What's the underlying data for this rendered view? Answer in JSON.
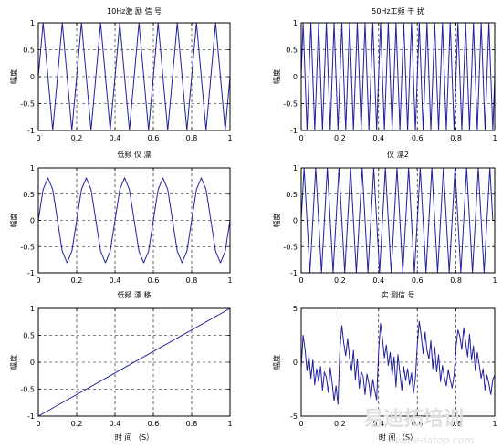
{
  "colors": {
    "line": "#1f1f9f",
    "axis": "#000000",
    "grid": "#000000",
    "background": "#ffffff"
  },
  "watermark": {
    "text": "易迪拓培训",
    "url": "www.edatop.com"
  },
  "chart_data": [
    {
      "type": "line",
      "title": "10Hz激 励 信 号",
      "xlabel": "",
      "ylabel": "幅度",
      "xlim": [
        0,
        1
      ],
      "ylim": [
        -1,
        1
      ],
      "xticks": [
        0,
        0.2,
        0.4,
        0.6,
        0.8,
        1
      ],
      "yticks": [
        -1,
        -0.5,
        0,
        0.5,
        1
      ],
      "grid": true,
      "series": [
        {
          "x": [
            0,
            0.025,
            0.05,
            0.075,
            0.1,
            0.125,
            0.15,
            0.175,
            0.2,
            0.225,
            0.25,
            0.275,
            0.3,
            0.325,
            0.35,
            0.375,
            0.4,
            0.425,
            0.45,
            0.475,
            0.5,
            0.525,
            0.55,
            0.575,
            0.6,
            0.625,
            0.65,
            0.675,
            0.7,
            0.725,
            0.75,
            0.775,
            0.8,
            0.825,
            0.85,
            0.875,
            0.9,
            0.925,
            0.95,
            0.975,
            1
          ],
          "y": [
            0,
            1,
            0,
            -1,
            0,
            1,
            0,
            -1,
            0,
            1,
            0,
            -1,
            0,
            1,
            0,
            -1,
            0,
            1,
            0,
            -1,
            0,
            1,
            0,
            -1,
            0,
            1,
            0,
            -1,
            0,
            1,
            0,
            -1,
            0,
            1,
            0,
            -1,
            0,
            1,
            0,
            -1,
            0
          ]
        }
      ]
    },
    {
      "type": "line",
      "title": "50Hz工频 干 扰",
      "xlabel": "",
      "ylabel": "幅度",
      "xlim": [
        0,
        1
      ],
      "ylim": [
        -1,
        1
      ],
      "xticks": [
        0,
        0.2,
        0.4,
        0.6,
        0.8,
        1
      ],
      "yticks": [
        -1,
        -0.5,
        0,
        0.5,
        1
      ],
      "grid": true,
      "series": [
        {
          "x": [
            0,
            0.01,
            0.02,
            0.03,
            0.04,
            0.05,
            0.06,
            0.07,
            0.08,
            0.09,
            0.1,
            0.11,
            0.12,
            0.13,
            0.14,
            0.15,
            0.16,
            0.17,
            0.18,
            0.19,
            0.2,
            0.21,
            0.22,
            0.23,
            0.24,
            0.25,
            0.26,
            0.27,
            0.28,
            0.29,
            0.3,
            0.31,
            0.32,
            0.33,
            0.34,
            0.35,
            0.36,
            0.37,
            0.38,
            0.39,
            0.4,
            0.41,
            0.42,
            0.43,
            0.44,
            0.45,
            0.46,
            0.47,
            0.48,
            0.49,
            0.5,
            0.51,
            0.52,
            0.53,
            0.54,
            0.55,
            0.56,
            0.57,
            0.58,
            0.59,
            0.6,
            0.61,
            0.62,
            0.63,
            0.64,
            0.65,
            0.66,
            0.67,
            0.68,
            0.69,
            0.7,
            0.71,
            0.72,
            0.73,
            0.74,
            0.75,
            0.76,
            0.77,
            0.78,
            0.79,
            0.8,
            0.81,
            0.82,
            0.83,
            0.84,
            0.85,
            0.86,
            0.87,
            0.88,
            0.89,
            0.9,
            0.91,
            0.92,
            0.93,
            0.94,
            0.95,
            0.96,
            0.97,
            0.98,
            0.99,
            1
          ],
          "y": [
            0,
            1,
            0,
            -1,
            0,
            1,
            0,
            -1,
            0,
            1,
            0,
            -1,
            0,
            1,
            0,
            -1,
            0,
            1,
            0,
            -1,
            0,
            1,
            0,
            -1,
            0,
            1,
            0,
            -1,
            0,
            1,
            0,
            -1,
            0,
            1,
            0,
            -1,
            0,
            1,
            0,
            -1,
            0,
            1,
            0,
            -1,
            0,
            1,
            0,
            -1,
            0,
            1,
            0,
            -1,
            0,
            1,
            0,
            -1,
            0,
            1,
            0,
            -1,
            0,
            1,
            0,
            -1,
            0,
            1,
            0,
            -1,
            0,
            1,
            0,
            -1,
            0,
            1,
            0,
            -1,
            0,
            1,
            0,
            -1,
            0,
            1,
            0,
            -1,
            0,
            1,
            0,
            -1,
            0,
            1,
            0,
            -1,
            0,
            1,
            0,
            -1,
            0,
            1,
            0,
            -1,
            0
          ]
        }
      ]
    },
    {
      "type": "line",
      "title": "低频 仪 漂",
      "xlabel": "",
      "ylabel": "幅度",
      "xlim": [
        0,
        1
      ],
      "ylim": [
        -1,
        1
      ],
      "xticks": [
        0,
        0.2,
        0.4,
        0.6,
        0.8,
        1
      ],
      "yticks": [
        -1,
        -0.5,
        0,
        0.5,
        1
      ],
      "grid": true,
      "series": [
        {
          "x": [
            0,
            0.025,
            0.05,
            0.075,
            0.1,
            0.125,
            0.15,
            0.175,
            0.2,
            0.225,
            0.25,
            0.275,
            0.3,
            0.325,
            0.35,
            0.375,
            0.4,
            0.425,
            0.45,
            0.475,
            0.5,
            0.525,
            0.55,
            0.575,
            0.6,
            0.625,
            0.65,
            0.675,
            0.7,
            0.725,
            0.75,
            0.775,
            0.8,
            0.825,
            0.85,
            0.875,
            0.9,
            0.925,
            0.95,
            0.975,
            1
          ],
          "y": [
            0,
            0.59,
            0.81,
            0.59,
            0,
            -0.59,
            -0.81,
            -0.59,
            0,
            0.59,
            0.81,
            0.59,
            0,
            -0.59,
            -0.81,
            -0.59,
            0,
            0.59,
            0.81,
            0.59,
            0,
            -0.59,
            -0.81,
            -0.59,
            0,
            0.59,
            0.81,
            0.59,
            0,
            -0.59,
            -0.81,
            -0.59,
            0,
            0.59,
            0.81,
            0.59,
            0,
            -0.59,
            -0.81,
            -0.59,
            0
          ]
        }
      ]
    },
    {
      "type": "line",
      "title": "仪 漂2",
      "xlabel": "",
      "ylabel": "幅度",
      "xlim": [
        0,
        1
      ],
      "ylim": [
        -1,
        1
      ],
      "xticks": [
        0,
        0.2,
        0.4,
        0.6,
        0.8,
        1
      ],
      "yticks": [
        -1,
        -0.5,
        0,
        0.5,
        1
      ],
      "grid": true,
      "series": [
        {
          "x": [
            0,
            0.015,
            0.03,
            0.045,
            0.06,
            0.075,
            0.09,
            0.105,
            0.12,
            0.135,
            0.15,
            0.165,
            0.18,
            0.195,
            0.21,
            0.225,
            0.24,
            0.255,
            0.27,
            0.285,
            0.3,
            0.315,
            0.33,
            0.345,
            0.36,
            0.375,
            0.39,
            0.405,
            0.42,
            0.435,
            0.45,
            0.465,
            0.48,
            0.495,
            0.51,
            0.525,
            0.54,
            0.555,
            0.57,
            0.585,
            0.6,
            0.615,
            0.63,
            0.645,
            0.66,
            0.675,
            0.69,
            0.705,
            0.72,
            0.735,
            0.75,
            0.765,
            0.78,
            0.795,
            0.81,
            0.825,
            0.84,
            0.855,
            0.87,
            0.885,
            0.9,
            0.915,
            0.93,
            0.945,
            0.96,
            0.975,
            0.99,
            1
          ],
          "y": [
            0,
            1,
            0,
            -1,
            0,
            1,
            0,
            -1,
            0,
            1,
            0,
            -1,
            0,
            1,
            0,
            -1,
            0,
            1,
            0,
            -1,
            0,
            1,
            0,
            -1,
            0,
            1,
            0,
            -1,
            0,
            1,
            0,
            -1,
            0,
            1,
            0,
            -1,
            0,
            1,
            0,
            -1,
            0,
            1,
            0,
            -1,
            0,
            1,
            0,
            -1,
            0,
            1,
            0,
            -1,
            0,
            1,
            0,
            -1,
            0,
            1,
            0,
            -1,
            0,
            1,
            0,
            -1,
            0,
            1,
            0,
            0
          ]
        }
      ]
    },
    {
      "type": "line",
      "title": "低频 漂 移",
      "xlabel": "时 间 （S）",
      "ylabel": "幅度",
      "xlim": [
        0,
        1
      ],
      "ylim": [
        -1,
        1
      ],
      "xticks": [
        0,
        0.2,
        0.4,
        0.6,
        0.8,
        1
      ],
      "yticks": [
        -1,
        -0.5,
        0,
        0.5,
        1
      ],
      "grid": true,
      "series": [
        {
          "x": [
            0,
            1
          ],
          "y": [
            -1,
            1
          ]
        }
      ]
    },
    {
      "type": "line",
      "title": "实 测信 号",
      "xlabel": "时 间 （S）",
      "ylabel": "幅度",
      "xlim": [
        0,
        1
      ],
      "ylim": [
        -5,
        5
      ],
      "xticks": [
        0,
        0.2,
        0.4,
        0.6,
        0.8,
        1
      ],
      "yticks": [
        -5,
        0,
        5
      ],
      "grid": true,
      "series": [
        {
          "x": [
            0,
            0.01,
            0.02,
            0.03,
            0.04,
            0.05,
            0.06,
            0.07,
            0.08,
            0.09,
            0.1,
            0.11,
            0.12,
            0.13,
            0.14,
            0.15,
            0.16,
            0.17,
            0.18,
            0.19,
            0.2,
            0.21,
            0.22,
            0.23,
            0.24,
            0.25,
            0.26,
            0.27,
            0.28,
            0.29,
            0.3,
            0.31,
            0.32,
            0.33,
            0.34,
            0.35,
            0.36,
            0.37,
            0.38,
            0.39,
            0.4,
            0.41,
            0.42,
            0.43,
            0.44,
            0.45,
            0.46,
            0.47,
            0.48,
            0.49,
            0.5,
            0.51,
            0.52,
            0.53,
            0.54,
            0.55,
            0.56,
            0.57,
            0.58,
            0.59,
            0.6,
            0.61,
            0.62,
            0.63,
            0.64,
            0.65,
            0.66,
            0.67,
            0.68,
            0.69,
            0.7,
            0.71,
            0.72,
            0.73,
            0.74,
            0.75,
            0.76,
            0.77,
            0.78,
            0.79,
            0.8,
            0.81,
            0.82,
            0.83,
            0.84,
            0.85,
            0.86,
            0.87,
            0.88,
            0.89,
            0.9,
            0.91,
            0.92,
            0.93,
            0.94,
            0.95,
            0.96,
            0.97,
            0.98,
            0.99,
            1
          ],
          "y": [
            -0.5,
            2.5,
            1.2,
            -0.8,
            0.6,
            -1.5,
            0.2,
            -2.1,
            -0.6,
            -1.8,
            -0.4,
            -2.6,
            -0.9,
            -1.4,
            -2.8,
            -0.5,
            -1.9,
            -3.6,
            -2.2,
            -3.9,
            1.2,
            3.4,
            1.8,
            0.6,
            2.2,
            0.4,
            -0.8,
            1.1,
            -1.6,
            0.3,
            -2.4,
            -0.9,
            -1.3,
            -3.0,
            -1.1,
            -2.0,
            -3.4,
            -1.6,
            -2.6,
            -3.5,
            1.0,
            3.6,
            2.2,
            0.4,
            1.6,
            -0.3,
            0.9,
            -1.2,
            0.5,
            -2.3,
            0.7,
            -1.0,
            -2.6,
            -0.4,
            -1.7,
            -0.6,
            -2.1,
            -1.0,
            -2.9,
            -1.5,
            1.6,
            3.8,
            2.5,
            0.8,
            2.8,
            1.1,
            0.3,
            2.0,
            -0.6,
            1.4,
            -0.9,
            0.7,
            -1.8,
            -0.3,
            -1.4,
            -2.2,
            -0.7,
            -1.6,
            -2.4,
            -1.2,
            1.4,
            3.0,
            2.4,
            1.2,
            3.2,
            1.8,
            0.5,
            2.6,
            0.2,
            1.5,
            -0.8,
            0.9,
            -0.2,
            -1.5,
            -0.6,
            -2.6,
            -1.2,
            -2.0,
            -3.0,
            -1.6,
            -1.2
          ]
        }
      ]
    }
  ]
}
